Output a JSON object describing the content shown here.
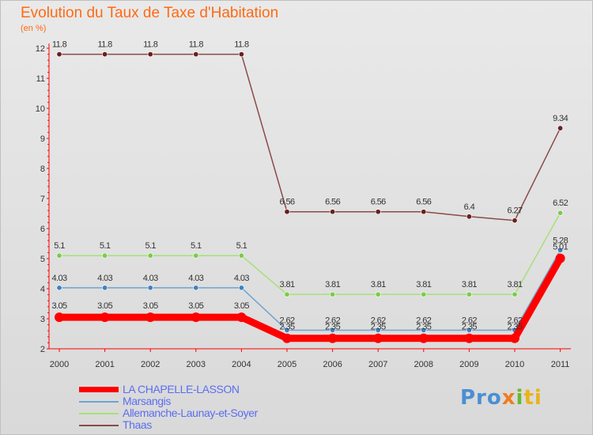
{
  "chart_data": {
    "type": "line",
    "title": "Evolution du Taux de Taxe d'Habitation",
    "subtitle": "(en %)",
    "x": [
      "2000",
      "2001",
      "2002",
      "2003",
      "2004",
      "2005",
      "2006",
      "2007",
      "2008",
      "2009",
      "2010",
      "2011"
    ],
    "ylim": [
      2,
      12
    ],
    "yticks": [
      "2",
      "3",
      "4",
      "5",
      "6",
      "7",
      "8",
      "9",
      "10",
      "11",
      "12"
    ],
    "grid": false,
    "legend_position": "bottom-left",
    "series": [
      {
        "name": "Thaas",
        "color": "#8a4a4a",
        "marker_color": "#6b1e1e",
        "values": [
          11.8,
          11.8,
          11.8,
          11.8,
          11.8,
          6.56,
          6.56,
          6.56,
          6.56,
          6.4,
          6.27,
          9.34
        ],
        "labels": [
          "11.8",
          "11.8",
          "11.8",
          "11.8",
          "11.8",
          "6.56",
          "6.56",
          "6.56",
          "6.56",
          "6.4",
          "6.27",
          "9.34"
        ]
      },
      {
        "name": "Allemanche-Launay-et-Soyer",
        "color": "#a6e07a",
        "marker_color": "#7acc4a",
        "values": [
          5.1,
          5.1,
          5.1,
          5.1,
          5.1,
          3.81,
          3.81,
          3.81,
          3.81,
          3.81,
          3.81,
          6.52
        ],
        "labels": [
          "5.1",
          "5.1",
          "5.1",
          "5.1",
          "5.1",
          "3.81",
          "3.81",
          "3.81",
          "3.81",
          "3.81",
          "3.81",
          "6.52"
        ]
      },
      {
        "name": "Marsangis",
        "color": "#6fa3cf",
        "marker_color": "#3b82c4",
        "values": [
          4.03,
          4.03,
          4.03,
          4.03,
          4.03,
          2.62,
          2.62,
          2.62,
          2.62,
          2.62,
          2.62,
          5.28
        ],
        "labels": [
          "4.03",
          "4.03",
          "4.03",
          "4.03",
          "4.03",
          "2.62",
          "2.62",
          "2.62",
          "2.62",
          "2.62",
          "2.62",
          "5.28"
        ]
      },
      {
        "name": "LA CHAPELLE-LASSON",
        "color": "#ff0000",
        "marker_color": "#ff0000",
        "values": [
          3.05,
          3.05,
          3.05,
          3.05,
          3.05,
          2.35,
          2.35,
          2.35,
          2.35,
          2.35,
          2.35,
          5.01
        ],
        "labels": [
          "3.05",
          "3.05",
          "3.05",
          "3.05",
          "3.05",
          "2.35",
          "2.35",
          "2.35",
          "2.35",
          "2.35",
          "2.35",
          "5.01"
        ]
      }
    ]
  },
  "legend": {
    "items": [
      {
        "label": "LA CHAPELLE-LASSON",
        "color": "#ff0000"
      },
      {
        "label": "Marsangis",
        "color": "#6fa3cf"
      },
      {
        "label": "Allemanche-Launay-et-Soyer",
        "color": "#a6e07a"
      },
      {
        "label": "Thaas",
        "color": "#8a4a4a"
      }
    ]
  },
  "logo": {
    "p1": "Pro",
    "p2": "x",
    "p3": "i",
    "p4": "ti"
  }
}
